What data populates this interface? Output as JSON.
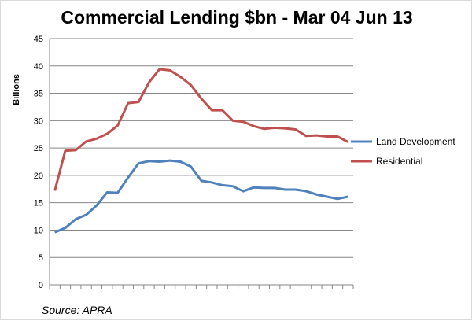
{
  "chart_data": {
    "type": "line",
    "title": "Commercial Lending $bn - Mar 04 Jun 13",
    "xlabel": "",
    "ylabel": "Billions",
    "ylim": [
      0,
      45
    ],
    "yticks": [
      "0",
      "5",
      "10",
      "15",
      "20",
      "25",
      "30",
      "35",
      "40",
      "45"
    ],
    "grid": true,
    "legend_position": "right",
    "source": "Source: APRA",
    "series": [
      {
        "name": "Land Development",
        "color": "#4f81bd",
        "values": [
          9.6,
          10.4,
          12,
          12.8,
          14.5,
          16.9,
          16.8,
          19.6,
          22.2,
          22.6,
          22.5,
          22.7,
          22.5,
          21.6,
          19,
          18.7,
          18.2,
          18,
          17.1,
          17.8,
          17.7,
          17.7,
          17.4,
          17.4,
          17.1,
          16.5,
          16.1,
          15.7,
          16.1
        ]
      },
      {
        "name": "Residential",
        "color": "#c0504d",
        "values": [
          17.2,
          24.5,
          24.6,
          26.2,
          26.7,
          27.6,
          29.1,
          33.2,
          33.4,
          37,
          39.4,
          39.2,
          38,
          36.5,
          34,
          31.9,
          31.9,
          30,
          29.8,
          29,
          28.5,
          28.7,
          28.6,
          28.4,
          27.2,
          27.3,
          27.1,
          27.1,
          26.1
        ]
      }
    ]
  }
}
